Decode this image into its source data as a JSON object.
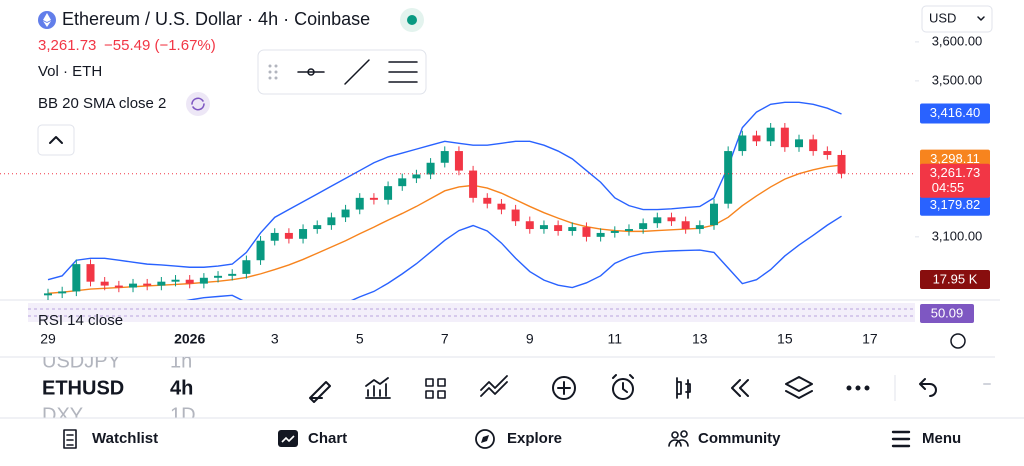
{
  "header": {
    "title": "Ethereum / U.S. Dollar · 4h · Coinbase",
    "currency": "USD",
    "price": "3,261.73",
    "change": "−55.49 (−1.67%)",
    "indicators": [
      "Vol · ETH",
      "BB 20 SMA close 2",
      "RSI 14 close"
    ]
  },
  "chart_data": {
    "type": "candlestick",
    "open": [
      2950,
      2955,
      2960,
      3030,
      2985,
      2975,
      2970,
      2980,
      2975,
      2985,
      2990,
      2980,
      2995,
      3000,
      3005,
      3040,
      3090,
      3110,
      3095,
      3120,
      3130,
      3150,
      3170,
      3200,
      3195,
      3230,
      3250,
      3260,
      3290,
      3320,
      3270,
      3200,
      3185,
      3170,
      3140,
      3120,
      3130,
      3115,
      3125,
      3100,
      3110,
      3115,
      3120,
      3135,
      3150,
      3140,
      3120,
      3130,
      3185,
      3320,
      3360,
      3345,
      3380,
      3330,
      3350,
      3320,
      3310
    ],
    "high": [
      2967,
      2972,
      3042,
      3042,
      2997,
      2987,
      2992,
      2992,
      2997,
      3002,
      3002,
      3007,
      3012,
      3017,
      3052,
      3102,
      3122,
      3122,
      3132,
      3142,
      3162,
      3182,
      3212,
      3212,
      3242,
      3262,
      3272,
      3302,
      3332,
      3332,
      3282,
      3212,
      3197,
      3182,
      3152,
      3142,
      3142,
      3137,
      3137,
      3122,
      3127,
      3132,
      3147,
      3162,
      3162,
      3152,
      3142,
      3197,
      3332,
      3372,
      3372,
      3392,
      3392,
      3362,
      3362,
      3332,
      3322
    ],
    "low": [
      2938,
      2943,
      2948,
      2973,
      2963,
      2958,
      2958,
      2963,
      2963,
      2973,
      2968,
      2968,
      2983,
      2988,
      2993,
      3028,
      3078,
      3083,
      3083,
      3108,
      3118,
      3138,
      3158,
      3183,
      3183,
      3218,
      3238,
      3248,
      3278,
      3258,
      3188,
      3173,
      3158,
      3128,
      3108,
      3108,
      3103,
      3103,
      3088,
      3088,
      3098,
      3103,
      3108,
      3123,
      3128,
      3108,
      3108,
      3118,
      3173,
      3308,
      3333,
      3333,
      3318,
      3318,
      3308,
      3298,
      3250
    ],
    "close": [
      2955,
      2960,
      3030,
      2985,
      2975,
      2970,
      2980,
      2975,
      2985,
      2990,
      2980,
      2995,
      3000,
      3005,
      3040,
      3090,
      3110,
      3095,
      3120,
      3130,
      3150,
      3170,
      3200,
      3195,
      3230,
      3250,
      3260,
      3290,
      3320,
      3270,
      3200,
      3185,
      3170,
      3140,
      3120,
      3130,
      3115,
      3125,
      3100,
      3110,
      3115,
      3120,
      3135,
      3150,
      3140,
      3120,
      3130,
      3185,
      3320,
      3360,
      3345,
      3380,
      3330,
      3350,
      3320,
      3310,
      3262
    ],
    "up_color": "#089981",
    "down_color": "#f23645",
    "overlays": [
      {
        "color": "#2962ff",
        "values": [
          2990,
          3000,
          3040,
          3045,
          3045,
          3040,
          3035,
          3030,
          3028,
          3025,
          3022,
          3022,
          3025,
          3030,
          3060,
          3110,
          3150,
          3170,
          3190,
          3210,
          3230,
          3250,
          3270,
          3290,
          3305,
          3315,
          3325,
          3335,
          3345,
          3340,
          3335,
          3335,
          3340,
          3345,
          3345,
          3335,
          3320,
          3300,
          3270,
          3240,
          3200,
          3180,
          3170,
          3170,
          3172,
          3175,
          3178,
          3200,
          3280,
          3380,
          3420,
          3440,
          3445,
          3445,
          3440,
          3430,
          3415
        ]
      },
      {
        "color": "#f7841e",
        "values": [
          2955,
          2958,
          2962,
          2966,
          2968,
          2970,
          2972,
          2974,
          2976,
          2978,
          2980,
          2983,
          2986,
          2990,
          2996,
          3005,
          3016,
          3028,
          3042,
          3058,
          3074,
          3090,
          3108,
          3125,
          3143,
          3160,
          3178,
          3198,
          3218,
          3228,
          3232,
          3225,
          3212,
          3195,
          3178,
          3162,
          3148,
          3135,
          3126,
          3120,
          3116,
          3114,
          3114,
          3116,
          3118,
          3120,
          3122,
          3130,
          3150,
          3180,
          3205,
          3228,
          3248,
          3262,
          3272,
          3280,
          3284
        ]
      },
      {
        "color": "#2962ff",
        "values": [
          2920,
          2916,
          2884,
          2887,
          2891,
          2900,
          2909,
          2918,
          2924,
          2931,
          2938,
          2944,
          2947,
          2950,
          2932,
          2900,
          2882,
          2886,
          2894,
          2906,
          2918,
          2930,
          2946,
          2960,
          2981,
          3005,
          3031,
          3061,
          3091,
          3116,
          3129,
          3115,
          3084,
          3045,
          3011,
          2989,
          2976,
          2970,
          2982,
          3000,
          3032,
          3048,
          3058,
          3062,
          3064,
          3065,
          3066,
          3060,
          3020,
          2980,
          2990,
          3016,
          3051,
          3079,
          3104,
          3130,
          3153
        ]
      }
    ],
    "ylim": [
      2938,
      3610
    ],
    "yticks": [
      {
        "value": 3600,
        "label": "3,600.00"
      },
      {
        "value": 3500,
        "label": "3,500.00"
      },
      {
        "value": 3100,
        "label": "3,100.00"
      }
    ],
    "xticks": [
      {
        "value": 0,
        "label": "29"
      },
      {
        "value": 10,
        "label": "2026"
      },
      {
        "value": 16,
        "label": "3"
      },
      {
        "value": 22,
        "label": "5"
      },
      {
        "value": 28,
        "label": "7"
      },
      {
        "value": 34,
        "label": "9"
      },
      {
        "value": 40,
        "label": "11"
      },
      {
        "value": 46,
        "label": "13"
      },
      {
        "value": 52,
        "label": "15"
      },
      {
        "value": 58,
        "label": "17"
      }
    ],
    "price_labels": [
      {
        "value": 3416.4,
        "label": "3,416.40",
        "color": "#2962ff"
      },
      {
        "value": 3298.11,
        "label": "3,298.11",
        "color": "#f7841e"
      },
      {
        "value": 3179.82,
        "label": "3,179.82",
        "color": "#2962ff"
      },
      {
        "value": 3261.73,
        "label": "3,261.73",
        "color": "#f23645"
      }
    ],
    "countdown": "04:55",
    "volume_label": "17.95 K",
    "rsi_label": "50.09"
  },
  "watchlist": [
    {
      "symbol": "USDJPY",
      "interval": "1h"
    },
    {
      "symbol": "ETHUSD",
      "interval": "4h"
    },
    {
      "symbol": "DXY",
      "interval": "1D"
    }
  ],
  "nav": [
    "Watchlist",
    "Chart",
    "Explore",
    "Community",
    "Menu"
  ]
}
